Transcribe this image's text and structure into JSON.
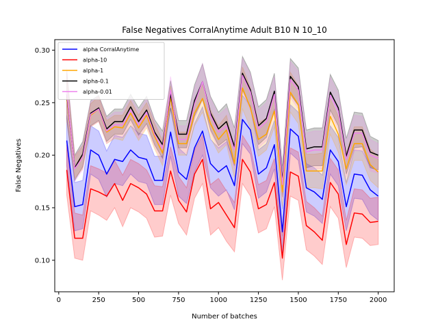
{
  "chart_data": {
    "type": "line",
    "title": "False Negatives CorralAnytime Adult B10 N 10_10",
    "xlabel": "Number of batches",
    "ylabel": "False Negatives",
    "xlim": [
      -25,
      2100
    ],
    "ylim": [
      0.07,
      0.31
    ],
    "xticks": [
      0,
      250,
      500,
      750,
      1000,
      1250,
      1500,
      1750,
      2000
    ],
    "yticks": [
      0.1,
      0.15,
      0.2,
      0.25,
      0.3
    ],
    "xtick_labels": [
      "0",
      "250",
      "500",
      "750",
      "1000",
      "1250",
      "1500",
      "1750",
      "2000"
    ],
    "ytick_labels": [
      "0.10",
      "0.15",
      "0.20",
      "0.25",
      "0.30"
    ],
    "grid": false,
    "legend_position": "upper-left",
    "x": [
      50,
      100,
      150,
      200,
      250,
      300,
      350,
      400,
      450,
      500,
      550,
      600,
      650,
      700,
      750,
      800,
      850,
      900,
      950,
      1000,
      1050,
      1100,
      1150,
      1200,
      1250,
      1300,
      1350,
      1400,
      1450,
      1500,
      1550,
      1600,
      1650,
      1700,
      1750,
      1800,
      1850,
      1900,
      1950,
      2000
    ],
    "series": [
      {
        "name": "alpha CorralAnytime",
        "color": "#0000ff",
        "values": [
          0.214,
          0.151,
          0.153,
          0.205,
          0.2,
          0.182,
          0.196,
          0.194,
          0.205,
          0.198,
          0.196,
          0.176,
          0.176,
          0.222,
          0.184,
          0.177,
          0.207,
          0.223,
          0.192,
          0.184,
          0.19,
          0.171,
          0.234,
          0.224,
          0.182,
          0.188,
          0.21,
          0.127,
          0.225,
          0.218,
          0.169,
          0.165,
          0.158,
          0.205,
          0.194,
          0.151,
          0.182,
          0.181,
          0.167,
          0.161
        ],
        "lower": [
          0.19,
          0.128,
          0.13,
          0.182,
          0.177,
          0.16,
          0.173,
          0.171,
          0.182,
          0.175,
          0.173,
          0.153,
          0.153,
          0.199,
          0.161,
          0.154,
          0.184,
          0.2,
          0.169,
          0.161,
          0.167,
          0.148,
          0.211,
          0.201,
          0.159,
          0.165,
          0.187,
          0.105,
          0.202,
          0.195,
          0.146,
          0.142,
          0.135,
          0.182,
          0.171,
          0.128,
          0.159,
          0.158,
          0.144,
          0.138
        ],
        "upper": [
          0.238,
          0.174,
          0.176,
          0.228,
          0.223,
          0.204,
          0.219,
          0.217,
          0.228,
          0.221,
          0.219,
          0.199,
          0.199,
          0.245,
          0.207,
          0.2,
          0.23,
          0.246,
          0.215,
          0.207,
          0.213,
          0.194,
          0.257,
          0.247,
          0.205,
          0.211,
          0.233,
          0.149,
          0.248,
          0.241,
          0.192,
          0.188,
          0.181,
          0.228,
          0.217,
          0.174,
          0.205,
          0.204,
          0.19,
          0.184
        ]
      },
      {
        "name": "alpha-10",
        "color": "#ff0000",
        "values": [
          0.186,
          0.121,
          0.121,
          0.168,
          0.165,
          0.161,
          0.173,
          0.157,
          0.173,
          0.169,
          0.163,
          0.147,
          0.147,
          0.185,
          0.157,
          0.146,
          0.182,
          0.196,
          0.149,
          0.155,
          0.143,
          0.131,
          0.196,
          0.184,
          0.149,
          0.153,
          0.174,
          0.102,
          0.184,
          0.18,
          0.133,
          0.127,
          0.119,
          0.174,
          0.163,
          0.115,
          0.145,
          0.144,
          0.136,
          0.137
        ],
        "lower": [
          0.162,
          0.102,
          0.1,
          0.147,
          0.143,
          0.138,
          0.15,
          0.132,
          0.15,
          0.146,
          0.14,
          0.122,
          0.123,
          0.162,
          0.135,
          0.124,
          0.159,
          0.173,
          0.124,
          0.131,
          0.118,
          0.108,
          0.173,
          0.161,
          0.126,
          0.13,
          0.151,
          0.081,
          0.161,
          0.157,
          0.11,
          0.104,
          0.096,
          0.151,
          0.14,
          0.093,
          0.122,
          0.121,
          0.114,
          0.115
        ],
        "upper": [
          0.21,
          0.145,
          0.143,
          0.19,
          0.187,
          0.183,
          0.195,
          0.181,
          0.196,
          0.192,
          0.186,
          0.171,
          0.17,
          0.208,
          0.18,
          0.169,
          0.205,
          0.219,
          0.172,
          0.178,
          0.166,
          0.155,
          0.219,
          0.207,
          0.172,
          0.176,
          0.197,
          0.123,
          0.207,
          0.203,
          0.156,
          0.15,
          0.142,
          0.197,
          0.186,
          0.138,
          0.168,
          0.167,
          0.159,
          0.16
        ]
      },
      {
        "name": "alpha-1",
        "color": "#ffa500",
        "values": [
          0.255,
          0.188,
          0.198,
          0.238,
          0.244,
          0.222,
          0.227,
          0.226,
          0.24,
          0.226,
          0.238,
          0.218,
          0.202,
          0.255,
          0.211,
          0.211,
          0.24,
          0.254,
          0.23,
          0.215,
          0.224,
          0.192,
          0.264,
          0.245,
          0.215,
          0.22,
          0.242,
          0.165,
          0.26,
          0.248,
          0.185,
          0.185,
          0.185,
          0.237,
          0.22,
          0.187,
          0.211,
          0.211,
          0.191,
          0.184
        ],
        "lower": [
          0.232,
          0.178,
          0.187,
          0.227,
          0.232,
          0.211,
          0.216,
          0.214,
          0.228,
          0.214,
          0.226,
          0.206,
          0.19,
          0.244,
          0.2,
          0.2,
          0.228,
          0.241,
          0.217,
          0.202,
          0.21,
          0.179,
          0.244,
          0.226,
          0.199,
          0.205,
          0.227,
          0.151,
          0.241,
          0.23,
          0.169,
          0.169,
          0.168,
          0.22,
          0.203,
          0.172,
          0.195,
          0.195,
          0.176,
          0.169
        ],
        "upper": [
          0.278,
          0.199,
          0.209,
          0.249,
          0.256,
          0.233,
          0.238,
          0.238,
          0.252,
          0.238,
          0.25,
          0.23,
          0.214,
          0.266,
          0.222,
          0.222,
          0.252,
          0.267,
          0.243,
          0.228,
          0.238,
          0.205,
          0.284,
          0.264,
          0.231,
          0.235,
          0.257,
          0.179,
          0.279,
          0.266,
          0.201,
          0.201,
          0.202,
          0.254,
          0.237,
          0.202,
          0.227,
          0.227,
          0.206,
          0.199
        ]
      },
      {
        "name": "alpha-0.1",
        "color": "#000000",
        "values": [
          0.258,
          0.188,
          0.201,
          0.24,
          0.245,
          0.225,
          0.232,
          0.232,
          0.246,
          0.232,
          0.243,
          0.222,
          0.21,
          0.258,
          0.22,
          0.22,
          0.252,
          0.27,
          0.24,
          0.225,
          0.232,
          0.208,
          0.278,
          0.262,
          0.228,
          0.235,
          0.261,
          0.175,
          0.275,
          0.265,
          0.206,
          0.208,
          0.208,
          0.26,
          0.245,
          0.199,
          0.224,
          0.224,
          0.203,
          0.2
        ],
        "lower": [
          0.235,
          0.176,
          0.189,
          0.228,
          0.233,
          0.213,
          0.22,
          0.22,
          0.234,
          0.219,
          0.23,
          0.21,
          0.197,
          0.245,
          0.207,
          0.207,
          0.237,
          0.253,
          0.224,
          0.209,
          0.215,
          0.19,
          0.262,
          0.245,
          0.21,
          0.217,
          0.244,
          0.16,
          0.258,
          0.247,
          0.188,
          0.19,
          0.19,
          0.243,
          0.228,
          0.182,
          0.207,
          0.208,
          0.188,
          0.186
        ],
        "upper": [
          0.281,
          0.2,
          0.213,
          0.252,
          0.257,
          0.237,
          0.244,
          0.244,
          0.258,
          0.245,
          0.256,
          0.234,
          0.223,
          0.271,
          0.233,
          0.233,
          0.267,
          0.287,
          0.256,
          0.241,
          0.249,
          0.226,
          0.294,
          0.279,
          0.246,
          0.253,
          0.278,
          0.19,
          0.292,
          0.283,
          0.224,
          0.226,
          0.226,
          0.277,
          0.262,
          0.216,
          0.241,
          0.24,
          0.218,
          0.214
        ]
      },
      {
        "name": "alpha-0.01",
        "color": "#ee82ee",
        "values": [
          0.26,
          0.187,
          0.198,
          0.239,
          0.244,
          0.223,
          0.229,
          0.229,
          0.243,
          0.229,
          0.241,
          0.22,
          0.206,
          0.262,
          0.215,
          0.215,
          0.249,
          0.27,
          0.238,
          0.222,
          0.228,
          0.205,
          0.276,
          0.26,
          0.225,
          0.232,
          0.258,
          0.172,
          0.272,
          0.262,
          0.203,
          0.205,
          0.205,
          0.257,
          0.242,
          0.196,
          0.221,
          0.221,
          0.2,
          0.197
        ],
        "lower": [
          0.237,
          0.175,
          0.186,
          0.227,
          0.232,
          0.211,
          0.217,
          0.217,
          0.231,
          0.216,
          0.228,
          0.208,
          0.193,
          0.249,
          0.202,
          0.202,
          0.234,
          0.253,
          0.222,
          0.206,
          0.211,
          0.187,
          0.26,
          0.243,
          0.207,
          0.214,
          0.241,
          0.157,
          0.255,
          0.244,
          0.185,
          0.187,
          0.187,
          0.24,
          0.225,
          0.179,
          0.204,
          0.205,
          0.185,
          0.183
        ],
        "upper": [
          0.283,
          0.199,
          0.21,
          0.251,
          0.256,
          0.235,
          0.241,
          0.241,
          0.255,
          0.242,
          0.254,
          0.232,
          0.219,
          0.275,
          0.228,
          0.228,
          0.264,
          0.287,
          0.254,
          0.238,
          0.245,
          0.223,
          0.292,
          0.277,
          0.243,
          0.25,
          0.275,
          0.187,
          0.289,
          0.28,
          0.221,
          0.223,
          0.223,
          0.274,
          0.259,
          0.213,
          0.238,
          0.237,
          0.215,
          0.211
        ]
      }
    ]
  }
}
